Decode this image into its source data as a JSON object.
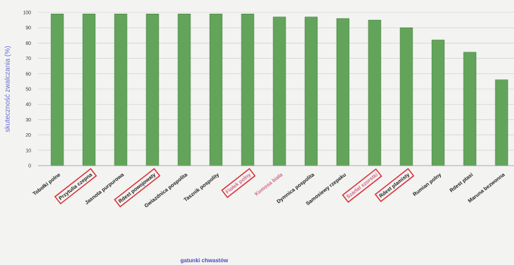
{
  "chart_data": {
    "type": "bar",
    "title": "",
    "xlabel": "gatunki chwastów",
    "ylabel": "skuteczność zwalczania (%)",
    "ylim": [
      0,
      100
    ],
    "yticks": [
      "0",
      "10",
      "20",
      "30",
      "40",
      "50",
      "60",
      "70",
      "80",
      "90",
      "100"
    ],
    "grid": true,
    "categories": [
      "Tobołki polne",
      "Przytulia czepna",
      "Jasnota purpurowa",
      "Rdest powojowaty",
      "Gwiazdnica pospolita",
      "Tasznik pospolity",
      "Fiołek polny",
      "Komosa biała",
      "Dymnica pospolita",
      "Samosiewy rzepaku",
      "Szarłat szorstki",
      "Rdest plamisty",
      "Rumian polny",
      "Rdest ptasi",
      "Maruna bezwonna"
    ],
    "highlighted": [
      false,
      true,
      false,
      true,
      false,
      false,
      true,
      false,
      false,
      false,
      true,
      true,
      false,
      false,
      false
    ],
    "values": [
      99,
      99,
      99,
      99,
      99,
      99,
      99,
      97,
      97,
      96,
      95,
      90,
      82,
      74,
      56
    ],
    "colors": {
      "bar": "#62a55a",
      "bar_edge": "#3f7a3a",
      "highlight_box": "#d9323a",
      "grid": "#c9c9c9"
    }
  }
}
